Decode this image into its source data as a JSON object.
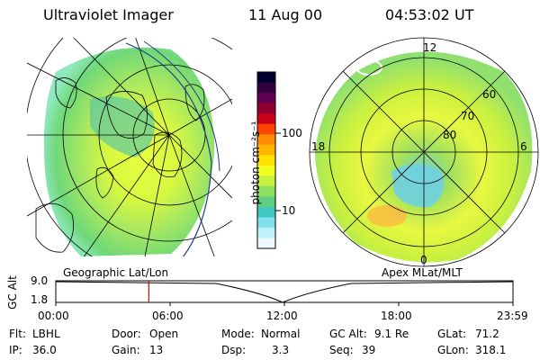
{
  "header": {
    "title": "Ultraviolet Imager",
    "date": "11 Aug 00",
    "time": "04:53:02 UT"
  },
  "left_panel": {
    "caption": "Geographic Lat/Lon"
  },
  "right_panel": {
    "caption": "Apex MLat/MLT",
    "mlt_labels": {
      "top": "12",
      "left": "18",
      "right": "6",
      "bottom": "0"
    },
    "mlat_labels": [
      "60",
      "70",
      "80"
    ]
  },
  "colorbar": {
    "label": "photon cm⁻²s⁻¹",
    "tick_labels": [
      "100",
      "10"
    ],
    "tick_values": [
      100,
      10
    ],
    "colors": [
      "#000030",
      "#300040",
      "#600050",
      "#900030",
      "#c80018",
      "#ff4400",
      "#ff8c00",
      "#ffb400",
      "#ffe000",
      "#f0ff20",
      "#c8f040",
      "#90e060",
      "#60d080",
      "#40c8c0",
      "#80e0f0",
      "#c0f0f8",
      "#f0f8ff"
    ]
  },
  "timeline": {
    "y_label": "GC Alt",
    "y_ticks": [
      "9.0",
      "1.8"
    ],
    "y_range": [
      1.8,
      9.0
    ],
    "x_ticks": [
      "00:00",
      "06:00",
      "12:00",
      "18:00",
      "23:59"
    ],
    "marker_time": "04:53",
    "accent": "#ff0000"
  },
  "info": {
    "col1": [
      {
        "label": "Flt:",
        "value": "LBHL"
      },
      {
        "label": "IP:",
        "value": "36.0"
      }
    ],
    "col2": [
      {
        "label": "Door:",
        "value": "Open"
      },
      {
        "label": "Gain:",
        "value": "13"
      }
    ],
    "col3": [
      {
        "label": "Mode:",
        "value": "Normal"
      },
      {
        "label": "Dsp:",
        "value": "3.3"
      }
    ],
    "col4": [
      {
        "label": "GC Alt:",
        "value": "9.1 Re"
      },
      {
        "label": "Seq:",
        "value": "39"
      }
    ],
    "col5": [
      {
        "label": "GLat:",
        "value": "71.2"
      },
      {
        "label": "GLon:",
        "value": "318.1"
      }
    ]
  }
}
